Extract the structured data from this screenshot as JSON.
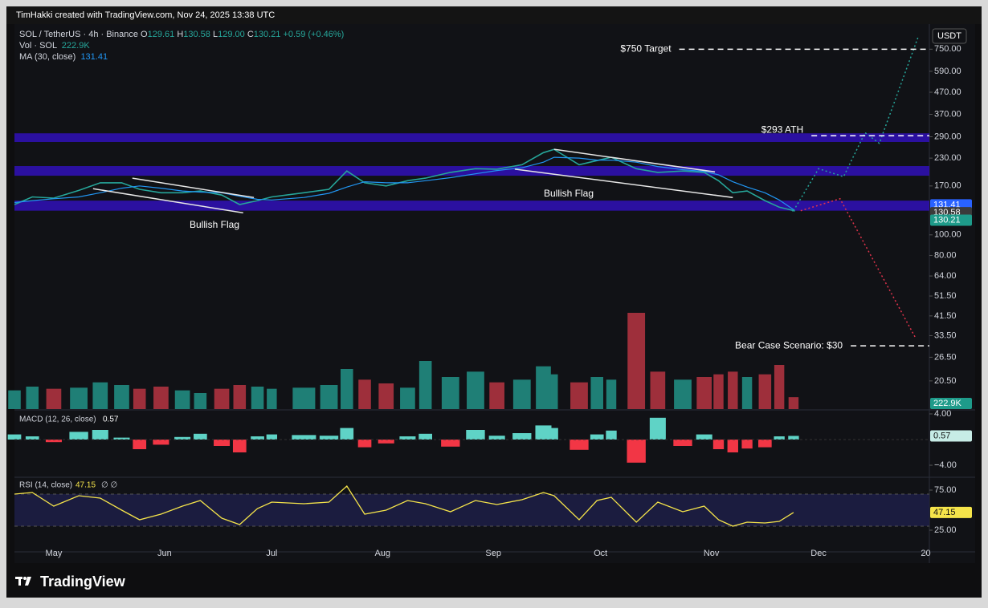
{
  "header": {
    "attribution": "TimHakki created with TradingView.com, Nov 24, 2025 13:38 UTC"
  },
  "footer": {
    "brand": "TradingView"
  },
  "chart_data": [
    {
      "type": "line",
      "symbol": "SOL / TetherUS · 4h · Binance",
      "currency": "USDT",
      "ohlc": {
        "names": [
          "O",
          "H",
          "L",
          "C"
        ],
        "values": [
          129.61,
          130.58,
          129,
          130.21
        ],
        "value_labels": [
          "129.61",
          "130.58",
          "129.00",
          "130.21"
        ]
      },
      "change": "+0.59 (+0.46%)",
      "log_scale": true,
      "xlim": [
        110,
        366
      ],
      "ylim": [
        15.1,
        985
      ],
      "xticks": [
        {
          "value": 121,
          "label": "May"
        },
        {
          "value": 152,
          "label": "Jun"
        },
        {
          "value": 182,
          "label": "Jul"
        },
        {
          "value": 213,
          "label": "Aug"
        },
        {
          "value": 244,
          "label": "Sep"
        },
        {
          "value": 274,
          "label": "Oct"
        },
        {
          "value": 305,
          "label": "Nov"
        },
        {
          "value": 335,
          "label": "Dec"
        },
        {
          "value": 365,
          "label": "20"
        }
      ],
      "yticks": [
        {
          "value": 20.5,
          "label": "20.50"
        },
        {
          "value": 26.5,
          "label": "26.50"
        },
        {
          "value": 33.5,
          "label": "33.50"
        },
        {
          "value": 41.5,
          "label": "41.50"
        },
        {
          "value": 51.5,
          "label": "51.50"
        },
        {
          "value": 64,
          "label": "64.00"
        },
        {
          "value": 80,
          "label": "80.00"
        },
        {
          "value": 100,
          "label": "100.00"
        },
        {
          "value": 170,
          "label": "170.00"
        },
        {
          "value": 230,
          "label": "230.00"
        },
        {
          "value": 290,
          "label": "290.00"
        },
        {
          "value": 370,
          "label": "370.00"
        },
        {
          "value": 470,
          "label": "470.00"
        },
        {
          "value": 590,
          "label": "590.00"
        },
        {
          "value": 750,
          "label": "750.00"
        }
      ],
      "grid": false,
      "x": [
        110,
        115,
        121,
        128,
        134,
        140,
        145,
        151,
        157,
        162,
        168,
        173,
        178,
        182,
        191,
        198,
        203,
        208,
        214,
        220,
        225,
        232,
        239,
        245,
        252,
        258,
        261,
        268,
        273,
        277,
        284,
        290,
        297,
        303,
        307,
        311,
        315,
        320,
        324,
        328
      ],
      "series": [
        {
          "name": "SOL / TetherUS · 4h · Binance",
          "color": "#26a69a",
          "values": [
            139,
            151,
            149,
            162,
            176,
            176,
            164,
            158,
            158,
            161,
            154,
            139,
            145,
            151,
            158,
            164,
            200,
            176,
            170,
            180,
            185,
            197,
            205,
            204,
            214,
            244,
            253,
            214,
            224,
            232,
            205,
            197,
            200,
            197,
            180,
            158,
            161,
            145,
            135,
            130.21
          ]
        },
        {
          "name": "MA (30, close)",
          "color": "#2196f3",
          "last": 131.41,
          "values": [
            142,
            145,
            148,
            151,
            158,
            166,
            170,
            166,
            161,
            159,
            158,
            152,
            147,
            146,
            150,
            157,
            168,
            178,
            176,
            176,
            180,
            186,
            194,
            201,
            207,
            220,
            232,
            230,
            225,
            225,
            220,
            210,
            203,
            199,
            192,
            178,
            168,
            158,
            146,
            131.41
          ]
        }
      ],
      "volume": {
        "name": "Vol · SOL",
        "last": "222.9K",
        "ylim": [
          0,
          1800
        ],
        "colors": {
          "up": "#1f7f76",
          "down": "#9e2f3b"
        },
        "values": [
          350,
          420,
          380,
          400,
          500,
          450,
          380,
          420,
          350,
          300,
          380,
          450,
          420,
          380,
          400,
          450,
          750,
          550,
          480,
          400,
          900,
          600,
          700,
          500,
          550,
          800,
          650,
          500,
          600,
          550,
          1800,
          700,
          550,
          600,
          650,
          700,
          600,
          650,
          825,
          222.9
        ]
      },
      "zones": [
        {
          "from": 274,
          "to": 301
        },
        {
          "from": 190,
          "to": 211
        },
        {
          "from": 130,
          "to": 145
        }
      ],
      "zone_color": "#3010b8",
      "trendlines": [
        {
          "label": "Bullish Flag",
          "upper": {
            "x": [
              143,
              177
            ],
            "y": [
              185,
              150
            ]
          },
          "lower": {
            "x": [
              132,
              174
            ],
            "y": [
              165,
              127
            ]
          }
        },
        {
          "label": "Bullish Flag",
          "upper": {
            "x": [
              261,
              306
            ],
            "y": [
              253,
              198
            ]
          },
          "lower": {
            "x": [
              250,
              311
            ],
            "y": [
              204,
              150
            ]
          }
        }
      ],
      "annotations": [
        {
          "text": "$750 Target",
          "value": 750,
          "from": 296
        },
        {
          "text": "$293 ATH",
          "value": 293,
          "from": 333
        },
        {
          "text": "Bear Case Scenario: $30",
          "value": 30,
          "from": 344
        }
      ],
      "projections": [
        {
          "color": "#26a69a",
          "x": [
            328,
            335,
            342,
            348,
            352,
            363
          ],
          "values": [
            130,
            205,
            188,
            303,
            270,
            870
          ]
        },
        {
          "color": "#e0334b",
          "x": [
            330,
            341,
            362
          ],
          "values": [
            130,
            148,
            33
          ]
        }
      ]
    },
    {
      "type": "histogram",
      "name": "MACD (12, 26, close)",
      "last": 0.57,
      "ylim": [
        -5.5,
        4.5
      ],
      "yticks": [
        {
          "value": 4,
          "label": "4.00"
        },
        {
          "value": -4,
          "label": "−4.00"
        }
      ],
      "colors": {
        "up": "#5fd3c6",
        "down": "#f23645"
      },
      "values": [
        0.8,
        0.5,
        -0.4,
        1.2,
        1.5,
        0.3,
        -1.5,
        -0.8,
        0.4,
        0.9,
        -1.0,
        -2.0,
        0.5,
        0.8,
        0.7,
        0.6,
        1.8,
        -1.2,
        -0.6,
        0.5,
        0.9,
        -1.1,
        1.5,
        0.6,
        1.0,
        2.2,
        1.8,
        -1.6,
        0.8,
        1.4,
        -3.6,
        3.4,
        -1.0,
        0.8,
        -1.5,
        -2.0,
        -1.4,
        -1.2,
        0.5,
        0.57
      ]
    },
    {
      "type": "line",
      "name": "RSI (14, close)",
      "last": 47.15,
      "extra": "∅ ∅",
      "color": "#f5e44a",
      "ylim": [
        0,
        88
      ],
      "yticks": [
        {
          "value": 75,
          "label": "75.00"
        },
        {
          "value": 25,
          "label": "25.00"
        }
      ],
      "band": [
        30,
        70
      ],
      "values": [
        70,
        72,
        55,
        68,
        65,
        50,
        38,
        45,
        55,
        62,
        40,
        32,
        52,
        60,
        58,
        60,
        80,
        45,
        50,
        62,
        58,
        48,
        62,
        57,
        63,
        72,
        68,
        38,
        62,
        66,
        35,
        60,
        48,
        55,
        38,
        30,
        35,
        34,
        36,
        47.15
      ]
    }
  ]
}
